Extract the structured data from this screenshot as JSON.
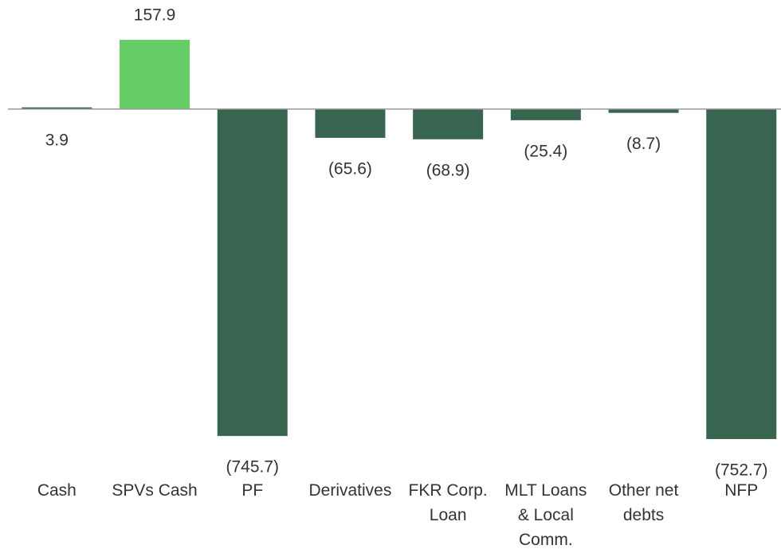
{
  "chart_data": {
    "type": "bar",
    "categories": [
      "Cash",
      "SPVs Cash",
      "PF",
      "Derivatives",
      "FKR Corp. Loan",
      "MLT Loans & Local Comm.",
      "Other net debts",
      "NFP"
    ],
    "values": [
      3.9,
      157.9,
      -745.7,
      -65.6,
      -68.9,
      -25.4,
      -8.7,
      -752.7
    ],
    "value_labels": [
      "3.9",
      "157.9",
      "(745.7)",
      "(65.6)",
      "(68.9)",
      "(25.4)",
      "(8.7)",
      "(752.7)"
    ],
    "colors": [
      "#376550",
      "#66cc66",
      "#376550",
      "#376550",
      "#376550",
      "#376550",
      "#376550",
      "#376550"
    ]
  }
}
